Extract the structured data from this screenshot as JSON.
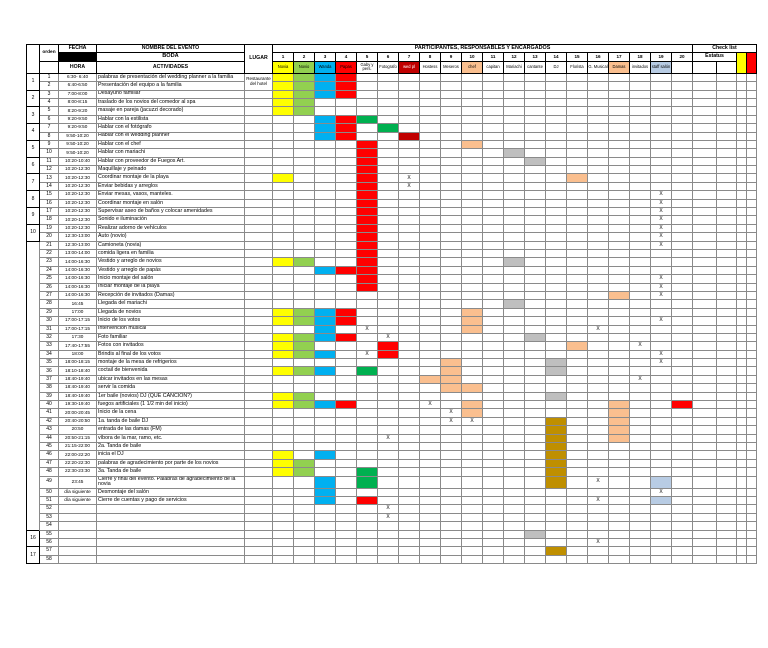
{
  "colors": {
    "Y": "#FFFF00",
    "G": "#92D050",
    "DG": "#00B050",
    "C": "#00B0F0",
    "R": "#FF0000",
    "O": "#FABF8F",
    "N": "#C00000",
    "GY": "#BFBFBF",
    "LB": "#B8CCE4",
    "OL": "#BF8F00"
  },
  "header": {
    "orden": "orden",
    "fecha": "FECHA",
    "hora": "HORA",
    "nombre_evento": "NOMBRE DEL EVENTO",
    "boda": "BODA",
    "actividades": "ACTIVIDADES",
    "lugar": "LUGAR",
    "participantes": "PARTICIPANTES, RESPONSABLES Y ENCARGADOS",
    "check_list": "Check list",
    "estatus": "Estatus",
    "legend_colors": [
      "#FFFF00",
      "#FF0000"
    ],
    "numeros": [
      "1",
      "2",
      "3",
      "4",
      "5",
      "6",
      "7",
      "8",
      "9",
      "10",
      "11",
      "12",
      "13",
      "14",
      "15",
      "16",
      "17",
      "18",
      "19",
      "20"
    ],
    "participantes_cols": [
      {
        "label": "Novia",
        "bg": "#FFFF00"
      },
      {
        "label": "Novio",
        "bg": "#92D050"
      },
      {
        "label": "Wanda",
        "bg": "#00B0F0"
      },
      {
        "label": "Papas",
        "bg": "#FF0000"
      },
      {
        "label": "Gaby y pers.",
        "bg": ""
      },
      {
        "label": "Fotografo",
        "bg": ""
      },
      {
        "label": "wed pl",
        "bg": "#C00000",
        "fg": "#FFFFFF"
      },
      {
        "label": "Hostess",
        "bg": ""
      },
      {
        "label": "Meseros",
        "bg": ""
      },
      {
        "label": "chef",
        "bg": "#FABF8F"
      },
      {
        "label": "capitan",
        "bg": ""
      },
      {
        "label": "Mariachi",
        "bg": ""
      },
      {
        "label": "cantante",
        "bg": ""
      },
      {
        "label": "DJ",
        "bg": ""
      },
      {
        "label": "Florista",
        "bg": ""
      },
      {
        "label": "G. Musical",
        "bg": ""
      },
      {
        "label": "Damas",
        "bg": "#FABF8F"
      },
      {
        "label": "invitados",
        "bg": ""
      },
      {
        "label": "staff salón",
        "bg": "#B8CCE4"
      },
      {
        "label": "",
        "bg": ""
      }
    ]
  },
  "gutter": [
    {
      "row": 1,
      "n": "1"
    },
    {
      "row": 3,
      "n": "2"
    },
    {
      "row": 5,
      "n": "3"
    },
    {
      "row": 7,
      "n": "4"
    },
    {
      "row": 9,
      "n": "5"
    },
    {
      "row": 11,
      "n": "6"
    },
    {
      "row": 13,
      "n": "7"
    },
    {
      "row": 15,
      "n": "8"
    },
    {
      "row": 17,
      "n": "9"
    },
    {
      "row": 19,
      "n": "10"
    },
    {
      "row": 55,
      "n": "16"
    },
    {
      "row": 57,
      "n": "17"
    }
  ],
  "rows": [
    {
      "o": "1",
      "h": "6:30- 6:40",
      "a": "palabras de presentación del wedding planner a la familia",
      "l": "Restaurante del hotel",
      "ls": 2,
      "m": {
        "1": "Y",
        "2": "G",
        "3": "C",
        "4": "R"
      }
    },
    {
      "o": "2",
      "h": "6:40-6:50",
      "a": "Presentación del equipo a la familia",
      "sl": true,
      "m": {
        "1": "Y",
        "2": "G",
        "3": "C",
        "4": "R"
      }
    },
    {
      "o": "3",
      "h": "7:00-8:00",
      "a": "Desayuno familiar",
      "m": {
        "1": "Y",
        "2": "G",
        "3": "C",
        "4": "R"
      }
    },
    {
      "o": "4",
      "h": "8:00-8:15",
      "a": "traslado de los novios del comedor al spa",
      "m": {
        "1": "Y",
        "2": "G"
      }
    },
    {
      "o": "5",
      "h": "8:20-9:20",
      "a": "masaje en pareja (jacuzzi decorado)",
      "m": {
        "1": "Y",
        "2": "G"
      }
    },
    {
      "o": "6",
      "h": "9:20-9:50",
      "a": "Hablar con la estilista",
      "m": {
        "3": "C",
        "4": "R",
        "5": "DG"
      }
    },
    {
      "o": "7",
      "h": "9:20-9:50",
      "a": "Hablar con el fotógrafo",
      "m": {
        "3": "C",
        "4": "R",
        "6": "DG"
      }
    },
    {
      "o": "8",
      "h": "9:50-10:20",
      "a": "Hablar con el wedding planner",
      "m": {
        "3": "C",
        "4": "R",
        "7": "N"
      }
    },
    {
      "o": "9",
      "h": "9:50-10:20",
      "a": "Hablar con el chef",
      "m": {
        "5": "R",
        "10": "O"
      }
    },
    {
      "o": "10",
      "h": "9:50-10:20",
      "a": "Hablar con mariachi",
      "m": {
        "5": "R",
        "12": "GY"
      }
    },
    {
      "o": "11",
      "h": "10:20-10:40",
      "a": "Hablar con proveedor de Fuegos Art.",
      "m": {
        "5": "R",
        "13": "GY"
      }
    },
    {
      "o": "12",
      "h": "10:20-12:30",
      "a": "Maquillaje y peinado",
      "m": {
        "5": "R"
      }
    },
    {
      "o": "13",
      "h": "10:20-12:30",
      "a": "Coordinar montaje de la playa",
      "m": {
        "1": "Y",
        "5": "R",
        "7": "X",
        "15": "O"
      }
    },
    {
      "o": "14",
      "h": "10:20-12:30",
      "a": "Enviar bebidas y arreglos",
      "m": {
        "5": "R",
        "7": "X"
      }
    },
    {
      "o": "15",
      "h": "10:20-12:30",
      "a": "Enviar mesas, vasos, manteles.",
      "m": {
        "5": "R",
        "19": "X"
      }
    },
    {
      "o": "16",
      "h": "10:20-12:30",
      "a": "Coordinar montaje en salón",
      "m": {
        "5": "R",
        "19": "X"
      }
    },
    {
      "o": "17",
      "h": "10:20-12:30",
      "a": "Supervisar aseo de baños y colocar amenidades",
      "m": {
        "5": "R",
        "19": "X"
      }
    },
    {
      "o": "18",
      "h": "10:20-12:30",
      "a": "Sonido e iluminación",
      "m": {
        "5": "R",
        "19": "X"
      }
    },
    {
      "o": "19",
      "h": "10:20-12:30",
      "a": "Realizar adorno de vehículos",
      "m": {
        "5": "R",
        "19": "X"
      }
    },
    {
      "o": "20",
      "h": "12:30-13:00",
      "a": "Auto (novio)",
      "m": {
        "5": "R",
        "19": "X"
      }
    },
    {
      "o": "21",
      "h": "12:30-13:00",
      "a": "Camioneta (novia)",
      "m": {
        "5": "R",
        "19": "X"
      }
    },
    {
      "o": "22",
      "h": "13:00-14:00",
      "a": "comida ligera en familia",
      "m": {
        "5": "R"
      }
    },
    {
      "o": "23",
      "h": "14:00-16:30",
      "a": "Vestido y arreglo de novios",
      "m": {
        "1": "Y",
        "2": "G",
        "5": "R",
        "12": "GY"
      }
    },
    {
      "o": "24",
      "h": "14:00-16:30",
      "a": "Vestido y arreglo de papás",
      "m": {
        "3": "C",
        "4": "R",
        "5": "R"
      }
    },
    {
      "o": "25",
      "h": "14:00-16:30",
      "a": "Inicio montaje del salón",
      "m": {
        "5": "R",
        "19": "X"
      }
    },
    {
      "o": "26",
      "h": "14:00-16:30",
      "a": "Iniciar montaje de la playa",
      "m": {
        "5": "R",
        "19": "X"
      }
    },
    {
      "o": "27",
      "h": "14:00-16:30",
      "a": "Recepción de invitados (Damas)",
      "m": {
        "17": "O",
        "19": "X"
      }
    },
    {
      "o": "28",
      "h": "16:45",
      "a": "Llegada del mariachi",
      "m": {
        "12": "GY"
      }
    },
    {
      "o": "29",
      "h": "17:00",
      "a": "Llegada de novios",
      "m": {
        "1": "Y",
        "2": "G",
        "3": "C",
        "4": "R",
        "10": "O"
      }
    },
    {
      "o": "30",
      "h": "17:00-17:15",
      "a": "Inicio de los votos",
      "m": {
        "1": "Y",
        "2": "G",
        "3": "C",
        "4": "R",
        "10": "O",
        "19": "X"
      }
    },
    {
      "o": "31",
      "h": "17:00-17:15",
      "a": "Intervención musical",
      "m": {
        "3": "C",
        "5": "X",
        "10": "O",
        "16": "X"
      }
    },
    {
      "o": "32",
      "h": "17:30",
      "a": "Foto familiar",
      "m": {
        "1": "Y",
        "2": "G",
        "3": "C",
        "4": "R",
        "6": "X",
        "13": "GY"
      }
    },
    {
      "o": "33",
      "h": "17:40-17:55",
      "a": "Fotos con invitados",
      "m": {
        "1": "Y",
        "2": "G",
        "6": "R",
        "15": "O",
        "18": "X"
      }
    },
    {
      "o": "34",
      "h": "18:00",
      "a": "Brindis al final de los votos",
      "m": {
        "1": "Y",
        "2": "G",
        "3": "C",
        "5": "X",
        "6": "R",
        "19": "X"
      }
    },
    {
      "o": "35",
      "h": "18:00-18:15",
      "a": "montaje de la mesa de refrigerios",
      "m": {
        "9": "O",
        "14": "GY",
        "19": "X"
      }
    },
    {
      "o": "36",
      "h": "18:10-18:40",
      "a": "coctail de bienvenida",
      "m": {
        "1": "Y",
        "2": "G",
        "3": "C",
        "5": "DG",
        "9": "O",
        "14": "GY"
      }
    },
    {
      "o": "37",
      "h": "18:40-19:40",
      "a": "ubicar invitados en las mesas",
      "m": {
        "8": "O",
        "9": "O",
        "18": "X"
      }
    },
    {
      "o": "38",
      "h": "18:40-19:40",
      "a": "servir la comida",
      "m": {
        "9": "O",
        "10": "O"
      }
    },
    {
      "o": "39",
      "h": "18:40-19:40",
      "a": "1er baile (novios) DJ (QUÉ CANCIÓN?)",
      "m": {
        "1": "Y",
        "2": "G",
        "14": "GY"
      }
    },
    {
      "o": "40",
      "h": "19:30-19:40",
      "a": "fuegos artificiales (1 1/2 min del inicio)",
      "m": {
        "1": "Y",
        "2": "G",
        "3": "C",
        "4": "R",
        "8": "X",
        "10": "O",
        "17": "O",
        "20": "R"
      }
    },
    {
      "o": "41",
      "h": "20:00-20:45",
      "a": "Inicio de la cena",
      "m": {
        "9": "X",
        "10": "O",
        "17": "O"
      }
    },
    {
      "o": "42",
      "h": "20:40-20:50",
      "a": "1a. tanda de baile DJ",
      "m": {
        "9": "X",
        "10": "X",
        "14": "OL",
        "17": "O"
      }
    },
    {
      "o": "43",
      "h": "20:50",
      "a": "entrada de las damas (FM)",
      "m": {
        "14": "OL",
        "17": "O"
      }
    },
    {
      "o": "44",
      "h": "20:50-21:15",
      "a": "víbora de la mar, ramo, etc.",
      "m": {
        "6": "X",
        "14": "OL",
        "17": "O"
      }
    },
    {
      "o": "45",
      "h": "21:15-22:00",
      "a": "2a. Tanda de baile",
      "m": {
        "14": "OL"
      }
    },
    {
      "o": "46",
      "h": "22:00-22:20",
      "a": "inicia el DJ",
      "m": {
        "1": "Y",
        "3": "C",
        "14": "OL"
      }
    },
    {
      "o": "47",
      "h": "22:20-22:30",
      "a": "palabras de agradecimiento por parte de los novios",
      "m": {
        "1": "Y",
        "2": "G",
        "14": "OL"
      }
    },
    {
      "o": "48",
      "h": "22:30-23:30",
      "a": "3a. Tanda de baile",
      "m": {
        "1": "Y",
        "2": "G",
        "5": "DG",
        "14": "OL"
      }
    },
    {
      "o": "49",
      "h": "23:45",
      "a": "Cierre y final del evento. Palabras de agradecimiento de la novia",
      "m": {
        "3": "C",
        "5": "DG",
        "14": "OL",
        "16": "X",
        "19": "LB"
      }
    },
    {
      "o": "50",
      "h": "día siguiente",
      "a": "Desmontaje del salón",
      "m": {
        "3": "C",
        "19": "X"
      }
    },
    {
      "o": "51",
      "h": "día siguiente",
      "a": "Cierre de cuentas y pago de servicios",
      "m": {
        "3": "C",
        "5": "R",
        "16": "X",
        "19": "LB"
      }
    },
    {
      "o": "52",
      "h": "",
      "a": "",
      "m": {
        "6": "X"
      }
    },
    {
      "o": "53",
      "h": "",
      "a": "",
      "m": {
        "6": "X"
      }
    },
    {
      "o": "54",
      "h": "",
      "a": "",
      "m": {}
    },
    {
      "o": "55",
      "h": "",
      "a": "",
      "m": {
        "13": "GY"
      }
    },
    {
      "o": "56",
      "h": "",
      "a": "",
      "m": {
        "16": "X"
      }
    },
    {
      "o": "57",
      "h": "",
      "a": "",
      "m": {
        "14": "OL"
      }
    },
    {
      "o": "58",
      "h": "",
      "a": "",
      "m": {}
    }
  ]
}
